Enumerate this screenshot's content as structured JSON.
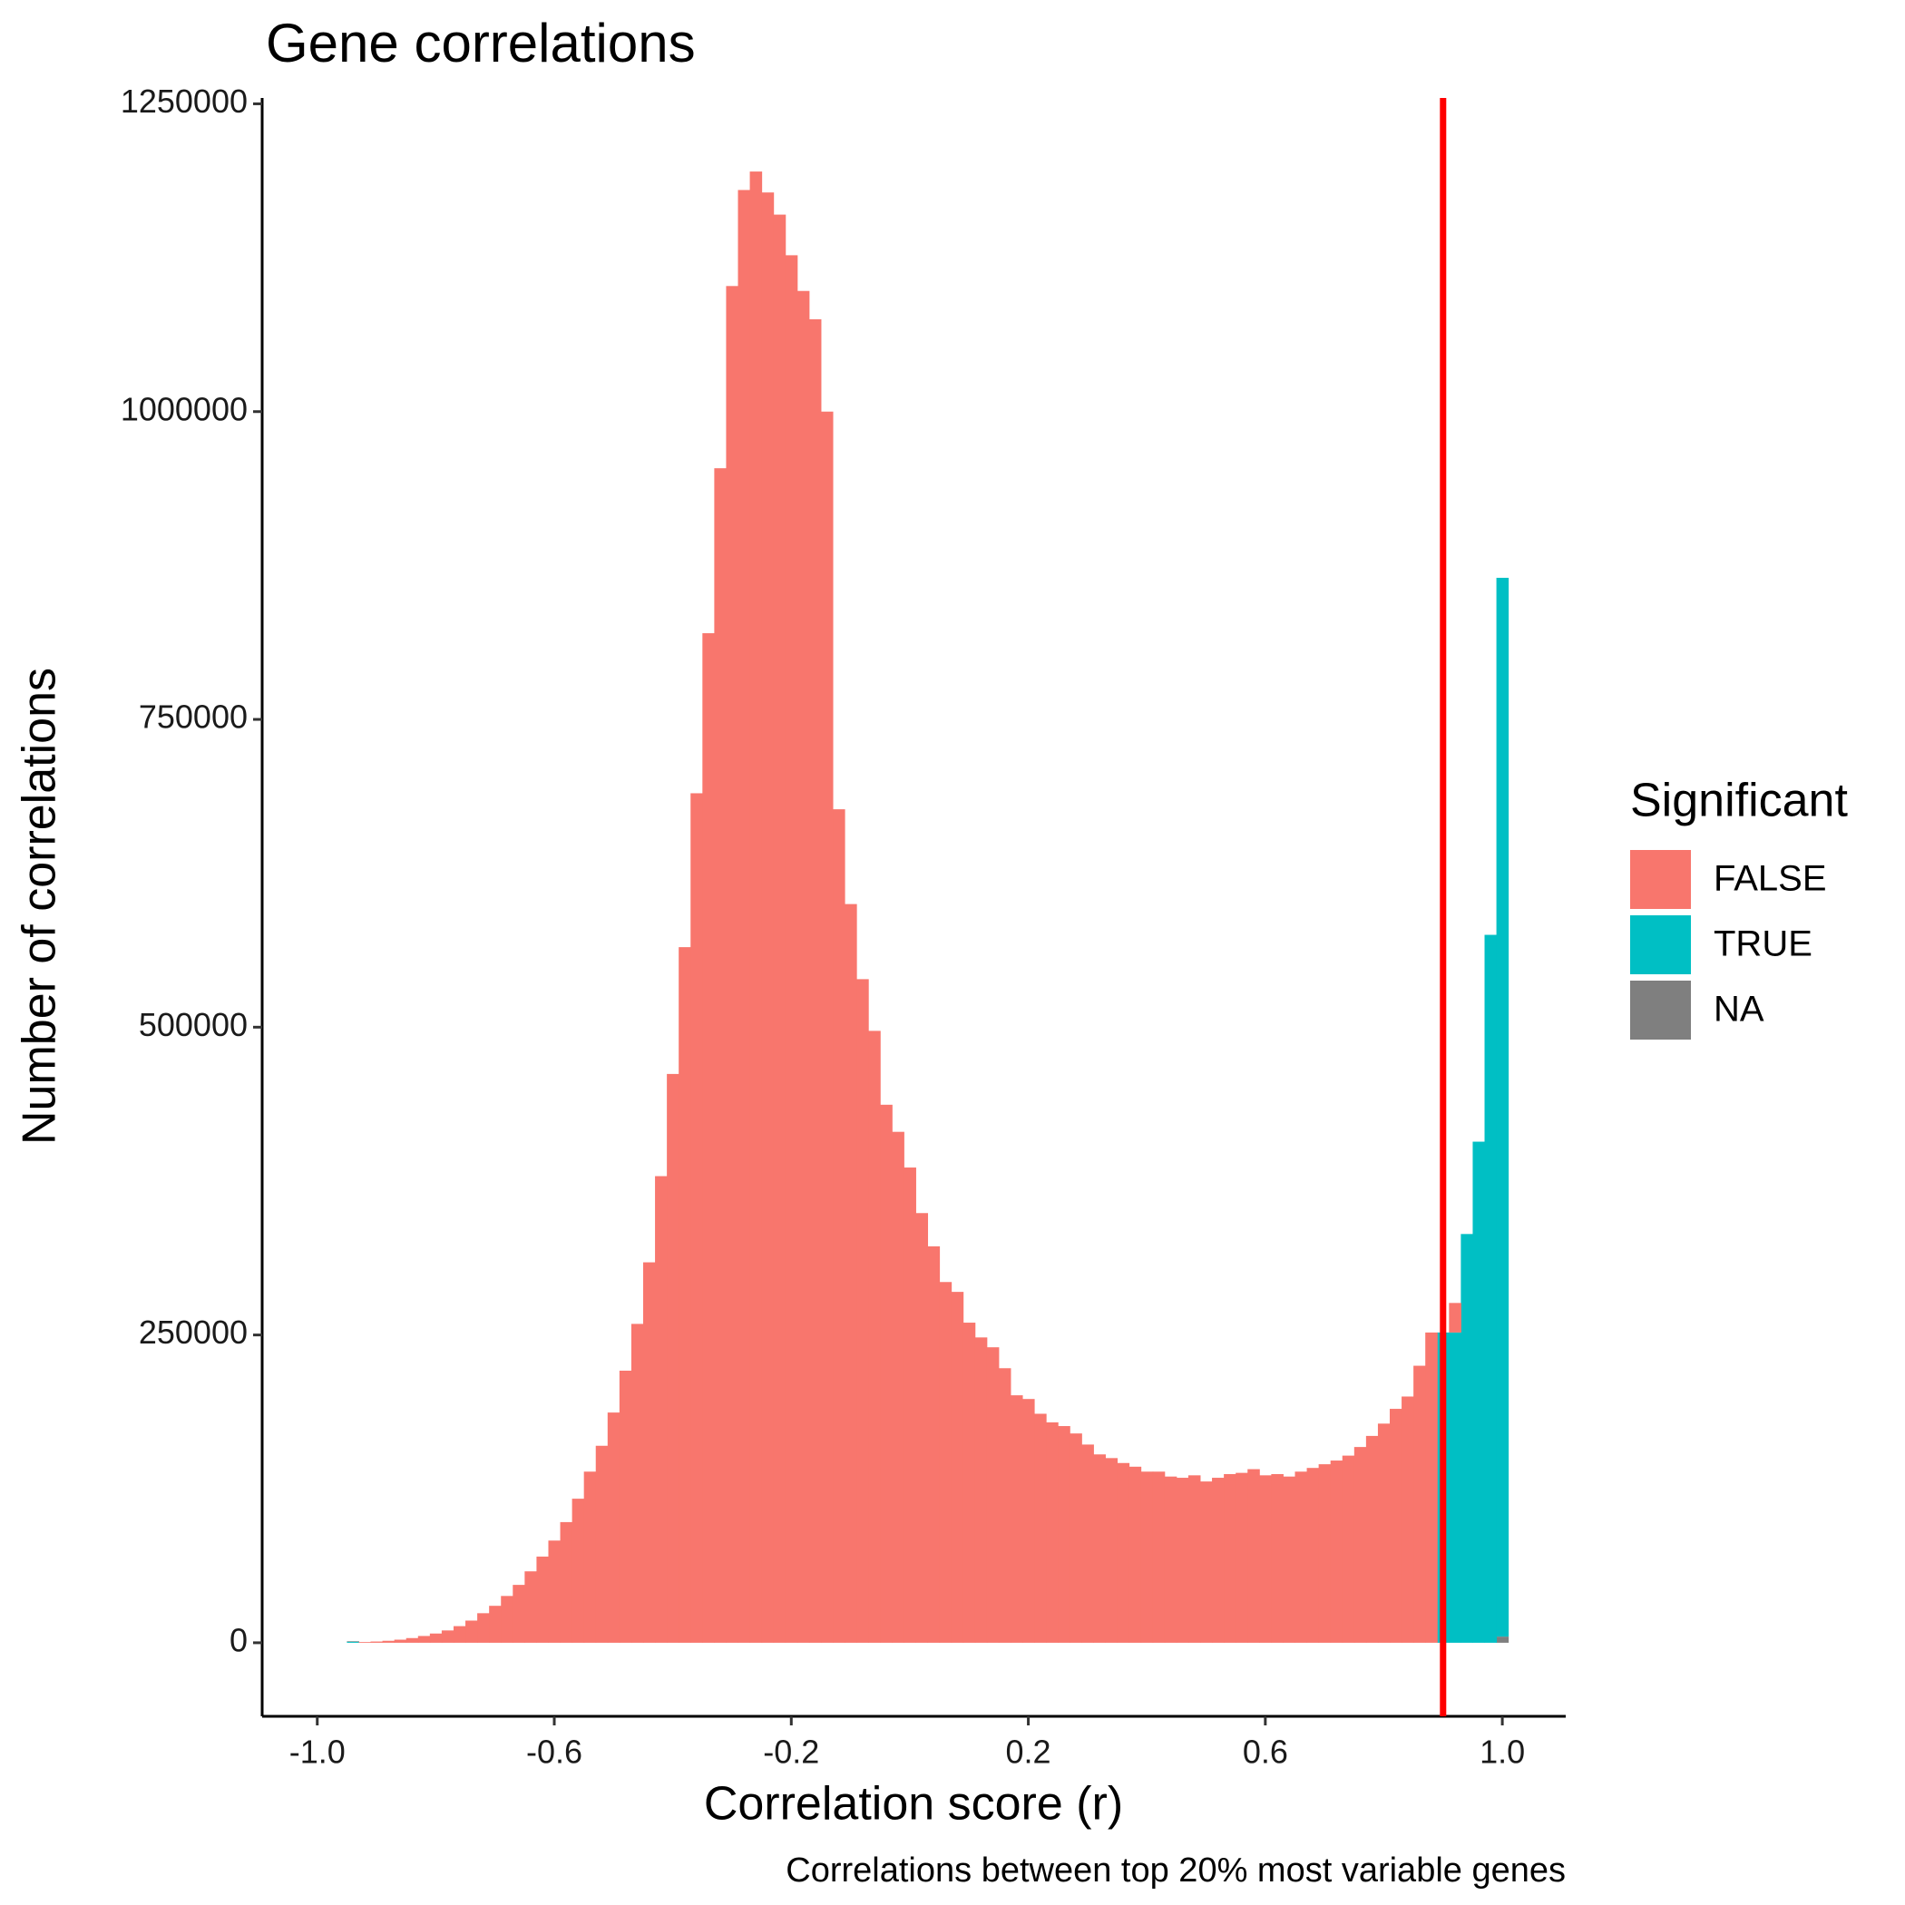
{
  "chart_data": {
    "type": "histogram",
    "title": "Gene correlations",
    "x_label": "Correlation score (r)",
    "y_label": "Number of correlations",
    "caption": "Correlations between top 20% most variable genes",
    "legend_title": "Significant",
    "legend_position": "right",
    "stacked": true,
    "bins": [
      -0.95,
      -0.93,
      -0.91,
      -0.89,
      -0.87,
      -0.85,
      -0.83,
      -0.81,
      -0.79,
      -0.77,
      -0.75,
      -0.73,
      -0.71,
      -0.69,
      -0.67,
      -0.65,
      -0.63,
      -0.61,
      -0.59,
      -0.57,
      -0.55,
      -0.53,
      -0.51,
      -0.49,
      -0.47,
      -0.45,
      -0.43,
      -0.41,
      -0.39,
      -0.37,
      -0.35,
      -0.33,
      -0.31,
      -0.29,
      -0.27,
      -0.25,
      -0.23,
      -0.21,
      -0.19,
      -0.17,
      -0.15,
      -0.13,
      -0.11,
      -0.09,
      -0.07,
      -0.05,
      -0.03,
      -0.01,
      0.01,
      0.03,
      0.05,
      0.07,
      0.09,
      0.11,
      0.13,
      0.15,
      0.17,
      0.19,
      0.21,
      0.23,
      0.25,
      0.27,
      0.29,
      0.31,
      0.33,
      0.35,
      0.37,
      0.39,
      0.41,
      0.43,
      0.45,
      0.47,
      0.49,
      0.51,
      0.53,
      0.55,
      0.57,
      0.59,
      0.61,
      0.63,
      0.65,
      0.67,
      0.69,
      0.71,
      0.73,
      0.75,
      0.77,
      0.79,
      0.81,
      0.83,
      0.85,
      0.87,
      0.89,
      0.91,
      0.93,
      0.95,
      0.97,
      0.99,
      1.01
    ],
    "series": [
      {
        "name": "FALSE",
        "color": "#F8766D",
        "values": [
          300,
          600,
          1000,
          1600,
          2500,
          3800,
          5500,
          7500,
          10000,
          13500,
          18000,
          24000,
          30000,
          38000,
          47000,
          58000,
          70000,
          83000,
          98000,
          117000,
          139000,
          160000,
          187000,
          221000,
          259000,
          309000,
          379000,
          462000,
          565000,
          690000,
          820000,
          954000,
          1102000,
          1180000,
          1195000,
          1178000,
          1160000,
          1127000,
          1098000,
          1075000,
          1000000,
          677000,
          600000,
          539000,
          497000,
          437000,
          415000,
          386000,
          349000,
          322000,
          293000,
          285000,
          260000,
          248000,
          240000,
          223000,
          201000,
          198000,
          186000,
          179000,
          176000,
          170000,
          161000,
          153000,
          150000,
          146000,
          143000,
          139000,
          139000,
          135000,
          134000,
          136000,
          131000,
          134000,
          137000,
          138000,
          141000,
          136000,
          137000,
          135000,
          139000,
          142000,
          145000,
          148000,
          152000,
          159000,
          168000,
          178000,
          190000,
          200000,
          225000,
          252000,
          0,
          24000,
          0,
          0,
          0,
          0
        ]
      },
      {
        "name": "TRUE",
        "color": "#00BFC4",
        "values": [
          1000,
          0,
          0,
          0,
          0,
          0,
          0,
          0,
          0,
          0,
          0,
          0,
          0,
          0,
          0,
          0,
          0,
          0,
          0,
          0,
          0,
          0,
          0,
          0,
          0,
          0,
          0,
          0,
          0,
          0,
          0,
          0,
          0,
          0,
          0,
          0,
          0,
          0,
          0,
          0,
          0,
          0,
          0,
          0,
          0,
          0,
          0,
          0,
          0,
          0,
          0,
          0,
          0,
          0,
          0,
          0,
          0,
          0,
          0,
          0,
          0,
          0,
          0,
          0,
          0,
          0,
          0,
          0,
          0,
          0,
          0,
          0,
          0,
          0,
          0,
          0,
          0,
          0,
          0,
          0,
          0,
          0,
          0,
          0,
          0,
          0,
          0,
          0,
          0,
          0,
          0,
          0,
          252000,
          252000,
          332000,
          407000,
          575000,
          860000
        ]
      },
      {
        "name": "NA",
        "color": "#7F7F7F",
        "values": [
          0,
          0,
          0,
          0,
          0,
          0,
          0,
          0,
          0,
          0,
          0,
          0,
          0,
          0,
          0,
          0,
          0,
          0,
          0,
          0,
          0,
          0,
          0,
          0,
          0,
          0,
          0,
          0,
          0,
          0,
          0,
          0,
          0,
          0,
          0,
          0,
          0,
          0,
          0,
          0,
          0,
          0,
          0,
          0,
          0,
          0,
          0,
          0,
          0,
          0,
          0,
          0,
          0,
          0,
          0,
          0,
          0,
          0,
          0,
          0,
          0,
          0,
          0,
          0,
          0,
          0,
          0,
          0,
          0,
          0,
          0,
          0,
          0,
          0,
          0,
          0,
          0,
          0,
          0,
          0,
          0,
          0,
          0,
          0,
          0,
          0,
          0,
          0,
          0,
          0,
          0,
          0,
          0,
          0,
          0,
          0,
          0,
          5000
        ]
      }
    ],
    "vline": {
      "x": 0.9,
      "color": "#FF0000"
    },
    "xlim": [
      -1.093,
      1.107
    ],
    "xticks": [
      {
        "value": -1.0,
        "label": "-1.0"
      },
      {
        "value": -0.6,
        "label": "-0.6"
      },
      {
        "value": -0.2,
        "label": "-0.2"
      },
      {
        "value": 0.2,
        "label": "0.2"
      },
      {
        "value": 0.6,
        "label": "0.6"
      },
      {
        "value": 1.0,
        "label": "1.0"
      }
    ],
    "ylim": [
      -59750,
      1254750
    ],
    "yticks": [
      0,
      250000,
      500000,
      750000,
      1000000,
      1250000
    ],
    "grid": false
  }
}
